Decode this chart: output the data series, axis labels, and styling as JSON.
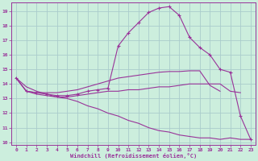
{
  "xlabel": "Windchill (Refroidissement éolien,°C)",
  "bg_color": "#cceedd",
  "grid_color": "#aacccc",
  "line_color": "#993399",
  "xlim": [
    -0.5,
    23.5
  ],
  "ylim": [
    9.8,
    19.6
  ],
  "xticks": [
    0,
    1,
    2,
    3,
    4,
    5,
    6,
    7,
    8,
    9,
    10,
    11,
    12,
    13,
    14,
    15,
    16,
    17,
    18,
    19,
    20,
    21,
    22,
    23
  ],
  "yticks": [
    10,
    11,
    12,
    13,
    14,
    15,
    16,
    17,
    18,
    19
  ],
  "series": [
    {
      "x": [
        0,
        1,
        2,
        3,
        4,
        5,
        6,
        7,
        8,
        9,
        10,
        11,
        12,
        13,
        14,
        15,
        16,
        17,
        18,
        19,
        20,
        21,
        22,
        23
      ],
      "y": [
        14.4,
        13.5,
        13.4,
        13.3,
        13.2,
        13.2,
        13.3,
        13.5,
        13.6,
        13.7,
        16.6,
        17.5,
        18.2,
        18.9,
        19.2,
        19.3,
        18.7,
        17.2,
        16.5,
        16.0,
        15.0,
        14.8,
        11.8,
        10.2
      ],
      "marker": true
    },
    {
      "x": [
        0,
        1,
        2,
        3,
        4,
        5,
        6,
        7,
        8,
        9,
        10,
        11,
        12,
        13,
        14,
        15,
        16,
        17,
        18,
        19,
        20
      ],
      "y": [
        14.4,
        13.5,
        13.4,
        13.4,
        13.4,
        13.5,
        13.6,
        13.8,
        14.0,
        14.2,
        14.4,
        14.5,
        14.6,
        14.7,
        14.8,
        14.85,
        14.85,
        14.9,
        14.9,
        13.9,
        13.5
      ],
      "marker": false
    },
    {
      "x": [
        0,
        1,
        2,
        3,
        4,
        5,
        6,
        7,
        8,
        9,
        10,
        11,
        12,
        13,
        14,
        15,
        16,
        17,
        18,
        19,
        20,
        21,
        22
      ],
      "y": [
        14.4,
        13.5,
        13.3,
        13.2,
        13.1,
        13.1,
        13.2,
        13.3,
        13.4,
        13.5,
        13.5,
        13.6,
        13.6,
        13.7,
        13.8,
        13.8,
        13.9,
        14.0,
        14.0,
        14.0,
        14.0,
        13.5,
        13.4
      ],
      "marker": false
    },
    {
      "x": [
        0,
        1,
        2,
        3,
        4,
        5,
        6,
        7,
        8,
        9,
        10,
        11,
        12,
        13,
        14,
        15,
        16,
        17,
        18,
        19,
        20,
        21,
        22,
        23
      ],
      "y": [
        14.4,
        13.8,
        13.5,
        13.3,
        13.1,
        13.0,
        12.8,
        12.5,
        12.3,
        12.0,
        11.8,
        11.5,
        11.3,
        11.0,
        10.8,
        10.7,
        10.5,
        10.4,
        10.3,
        10.3,
        10.2,
        10.3,
        10.2,
        10.2
      ],
      "marker": false
    }
  ]
}
